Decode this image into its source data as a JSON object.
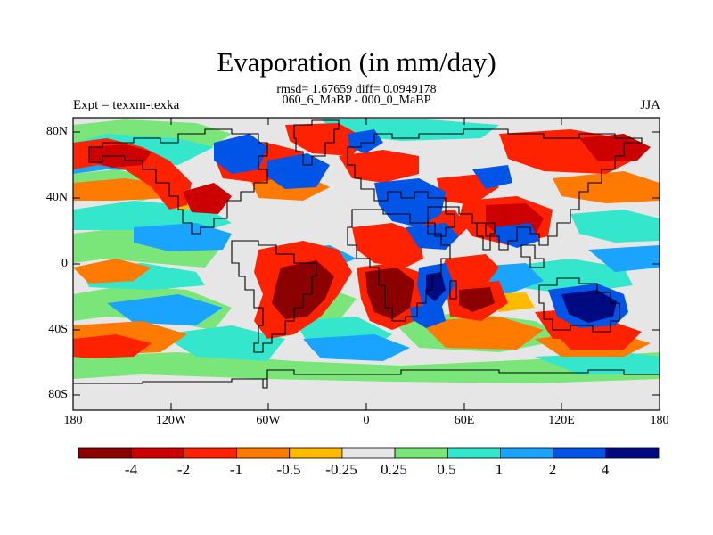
{
  "title": "Evaporation (in mm/day)",
  "subtitle_stats": "rmsd= 1.67659 diff= 0.0949178",
  "subtitle_case": "060_6_MaBP - 000_0_MaBP",
  "left_string": "Expt = texxm-texka",
  "right_string": "JJA",
  "y_ticks": [
    "80N",
    "40N",
    "0",
    "40S",
    "80S"
  ],
  "x_ticks": [
    "180",
    "120W",
    "60W",
    "0",
    "60E",
    "120E",
    "180"
  ],
  "colorbar": {
    "labels": [
      "-4",
      "-2",
      "-1",
      "-0.5",
      "-0.25",
      "0.25",
      "0.5",
      "1",
      "2",
      "4"
    ],
    "colors": [
      "#8b0000",
      "#cc0000",
      "#ff2200",
      "#ff7a00",
      "#ffbb00",
      "#e6e6e6",
      "#7ae67a",
      "#33e6cc",
      "#1aa3ff",
      "#0055e6",
      "#000a80"
    ]
  },
  "map_colors": {
    "ocean_background": "#e6e6e6",
    "coastline": "#000000"
  }
}
